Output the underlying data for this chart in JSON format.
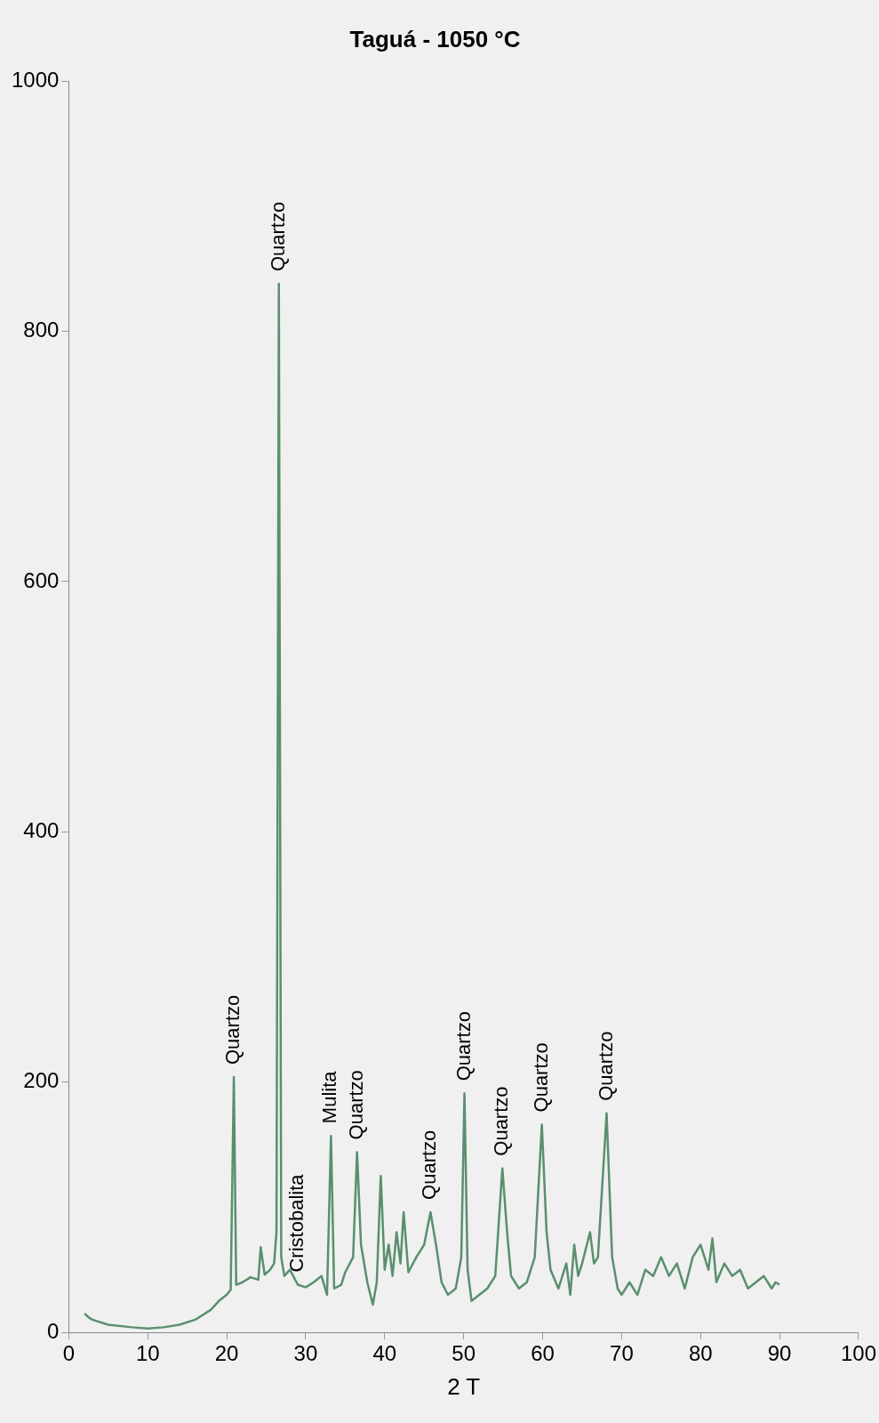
{
  "chart_data": {
    "type": "line",
    "title": "Taguá - 1050 °C",
    "xlabel": "2 T",
    "color": "#5a8f6e",
    "marker": "none",
    "grid": false,
    "legend": false,
    "xlim": [
      0,
      100
    ],
    "xticks": [
      0,
      10,
      20,
      30,
      40,
      50,
      60,
      70,
      80,
      90,
      100
    ],
    "ylim": [
      0,
      1000
    ],
    "yticks": [
      0,
      200,
      400,
      600,
      800,
      1000
    ],
    "x": [
      2,
      2.5,
      3,
      5,
      8,
      10,
      12,
      14,
      16,
      18,
      19,
      20,
      20.5,
      20.9,
      21.2,
      22,
      23,
      24,
      24.3,
      24.8,
      25.5,
      26,
      26.3,
      26.6,
      26.9,
      27.3,
      28,
      29,
      30,
      31,
      32,
      32.7,
      33.2,
      33.6,
      34.5,
      35,
      36,
      36.5,
      37,
      37.8,
      38.5,
      39,
      39.5,
      40,
      40.5,
      41,
      41.5,
      42,
      42.4,
      43,
      44,
      45,
      45.8,
      46.5,
      47.2,
      48,
      49,
      49.7,
      50.1,
      50.5,
      51,
      52,
      53,
      54,
      54.9,
      55.5,
      56,
      57,
      58,
      59,
      59.9,
      60.5,
      61,
      62,
      63,
      63.5,
      64,
      64.5,
      65,
      66,
      66.5,
      67,
      68.1,
      68.8,
      69.5,
      70,
      71,
      72,
      73,
      74,
      75,
      76,
      77,
      78,
      79,
      80,
      81,
      81.5,
      82,
      83,
      84,
      85,
      86,
      87,
      88,
      89,
      89.5,
      90
    ],
    "values": [
      15,
      12,
      10,
      6,
      4,
      3,
      4,
      6,
      10,
      18,
      25,
      30,
      34,
      204,
      38,
      40,
      44,
      42,
      68,
      46,
      50,
      55,
      80,
      838,
      60,
      45,
      50,
      38,
      36,
      40,
      45,
      30,
      157,
      35,
      38,
      48,
      60,
      144,
      70,
      40,
      22,
      40,
      125,
      50,
      70,
      45,
      80,
      55,
      96,
      48,
      60,
      70,
      96,
      70,
      40,
      30,
      35,
      60,
      191,
      50,
      25,
      30,
      35,
      45,
      131,
      80,
      45,
      35,
      40,
      60,
      166,
      80,
      50,
      35,
      55,
      30,
      70,
      45,
      55,
      80,
      55,
      60,
      175,
      60,
      35,
      30,
      40,
      30,
      50,
      45,
      60,
      45,
      55,
      35,
      60,
      70,
      50,
      75,
      40,
      55,
      45,
      50,
      35,
      40,
      45,
      35,
      40,
      38
    ],
    "annotations": [
      {
        "text": "Quartzo",
        "x": 20.9,
        "y": 204
      },
      {
        "text": "Quartzo",
        "x": 26.6,
        "y": 838
      },
      {
        "text": "Cristobalita",
        "x": 29,
        "y": 38
      },
      {
        "text": "Mulita",
        "x": 33.2,
        "y": 157
      },
      {
        "text": "Quartzo",
        "x": 36.5,
        "y": 144
      },
      {
        "text": "Quartzo",
        "x": 45.8,
        "y": 96
      },
      {
        "text": "Quartzo",
        "x": 50.1,
        "y": 191
      },
      {
        "text": "Quartzo",
        "x": 54.9,
        "y": 131
      },
      {
        "text": "Quartzo",
        "x": 59.9,
        "y": 166
      },
      {
        "text": "Quartzo",
        "x": 68.1,
        "y": 175
      }
    ]
  }
}
